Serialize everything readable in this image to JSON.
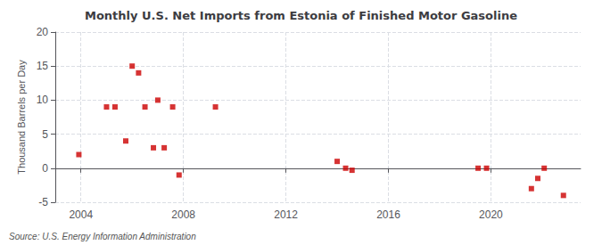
{
  "chart_data": {
    "type": "scatter",
    "title": "Monthly U.S. Net Imports from Estonia of Finished Motor Gasoline",
    "ylabel": "Thousand Barrels per Day",
    "annotations": [
      "Source: U.S. Energy Information Administration"
    ],
    "x": [
      2003.92,
      2005.0,
      2005.33,
      2005.75,
      2006.0,
      2006.25,
      2006.5,
      2006.83,
      2007.0,
      2007.25,
      2007.58,
      2007.83,
      2009.25,
      2014.0,
      2014.33,
      2014.58,
      2019.5,
      2019.83,
      2021.58,
      2021.83,
      2022.08,
      2022.83
    ],
    "values": [
      2.0,
      9.0,
      9.0,
      4.0,
      15.0,
      14.0,
      9.0,
      3.0,
      10.0,
      3.0,
      9.0,
      -1.0,
      9.0,
      1.0,
      0.0,
      -0.3,
      0.0,
      0.0,
      -3.0,
      -1.5,
      0.0,
      -4.0
    ],
    "color": "#cc0000",
    "marker": "square",
    "xlim": [
      2003.0,
      2023.5
    ],
    "xticks": [
      2004,
      2008,
      2012,
      2016,
      2020
    ],
    "ylim": [
      -5,
      20
    ],
    "yticks": [
      -5,
      0,
      5,
      10,
      15,
      20
    ],
    "grid": true
  }
}
